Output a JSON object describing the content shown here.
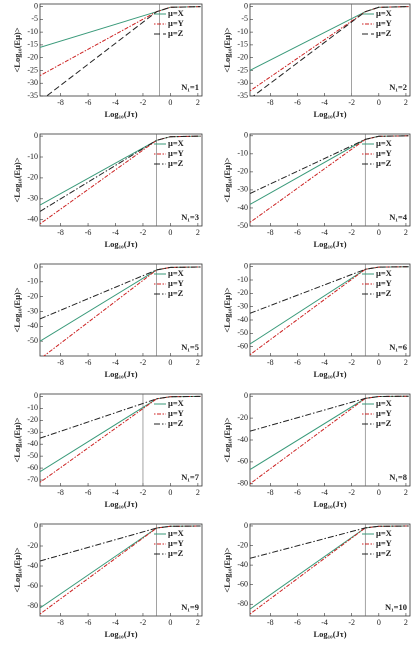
{
  "chart_data": [
    {
      "type": "line",
      "ylabel": "<Log₁₀(Eμ)>",
      "xlabel": "Log₁₀(Jτ)",
      "annotation": "N₁=1",
      "x": [
        -9.5,
        -1,
        0,
        2.2
      ],
      "xlim": [
        -9.5,
        2.3
      ],
      "xticks": [
        -8,
        -6,
        -4,
        -2,
        0,
        2
      ],
      "ylim": [
        -35,
        1
      ],
      "yticks": [
        0,
        -5,
        -10,
        -15,
        -20,
        -25,
        -30,
        -35
      ],
      "vline": -0.8,
      "series": [
        {
          "name": "μ=X",
          "color": "#3a9a7a",
          "dash": "solid",
          "values": [
            -16,
            -2,
            -0.3,
            0
          ]
        },
        {
          "name": "μ=Y",
          "color": "#cc2222",
          "dash": "dotdash",
          "values": [
            -27,
            -2,
            -0.3,
            0
          ]
        },
        {
          "name": "μ=Z",
          "color": "#222222",
          "dash": "dashed",
          "values": [
            -37,
            -2,
            -0.3,
            0
          ]
        }
      ]
    },
    {
      "type": "line",
      "ylabel": "<Log₁₀(Eμ)>",
      "xlabel": "Log₁₀(Jτ)",
      "annotation": "N₁=2",
      "x": [
        -9.5,
        -1,
        0,
        2.2
      ],
      "xlim": [
        -9.5,
        2.3
      ],
      "xticks": [
        -8,
        -6,
        -4,
        -2,
        0,
        2
      ],
      "ylim": [
        -35,
        1
      ],
      "yticks": [
        0,
        -5,
        -10,
        -15,
        -20,
        -25,
        -30,
        -35
      ],
      "vline": -2,
      "series": [
        {
          "name": "μ=X",
          "color": "#3a9a7a",
          "dash": "solid",
          "values": [
            -25,
            -2,
            -0.3,
            0
          ]
        },
        {
          "name": "μ=Y",
          "color": "#cc2222",
          "dash": "dotdash",
          "values": [
            -33,
            -2,
            -0.3,
            0
          ]
        },
        {
          "name": "μ=Z",
          "color": "#222222",
          "dash": "dashed",
          "values": [
            -36,
            -2,
            -0.3,
            0
          ]
        }
      ]
    },
    {
      "type": "line",
      "ylabel": "<Log₁₀(Eμ)>",
      "xlabel": "Log₁₀(Jτ)",
      "annotation": "N₁=3",
      "x": [
        -9.5,
        -1,
        0,
        2.2
      ],
      "xlim": [
        -9.5,
        2.3
      ],
      "xticks": [
        -8,
        -6,
        -4,
        -2,
        0,
        2
      ],
      "ylim": [
        -43,
        1
      ],
      "yticks": [
        0,
        -10,
        -20,
        -30,
        -40
      ],
      "vline": -1,
      "series": [
        {
          "name": "μ=X",
          "color": "#3a9a7a",
          "dash": "solid",
          "values": [
            -33,
            -2,
            -0.3,
            0
          ]
        },
        {
          "name": "μ=Y",
          "color": "#cc2222",
          "dash": "dotdash",
          "values": [
            -42,
            -2,
            -0.3,
            0
          ]
        },
        {
          "name": "μ=Z",
          "color": "#222222",
          "dash": "dashdot",
          "values": [
            -36,
            -2,
            -0.3,
            0
          ]
        }
      ]
    },
    {
      "type": "line",
      "ylabel": "<Log₁₀(Eμ)>",
      "xlabel": "Log₁₀(Jτ)",
      "annotation": "N₁=4",
      "x": [
        -9.5,
        -1,
        0,
        2.2
      ],
      "xlim": [
        -9.5,
        2.3
      ],
      "xticks": [
        -8,
        -6,
        -4,
        -2,
        0,
        2
      ],
      "ylim": [
        -50,
        1
      ],
      "yticks": [
        0,
        -10,
        -20,
        -30,
        -40,
        -50
      ],
      "vline": -1,
      "series": [
        {
          "name": "μ=X",
          "color": "#3a9a7a",
          "dash": "solid",
          "values": [
            -38,
            -2,
            -0.3,
            0
          ]
        },
        {
          "name": "μ=Y",
          "color": "#cc2222",
          "dash": "dotdash",
          "values": [
            -48,
            -2,
            -0.3,
            0
          ]
        },
        {
          "name": "μ=Z",
          "color": "#222222",
          "dash": "dashdot",
          "values": [
            -32,
            -2,
            -0.3,
            0
          ]
        }
      ]
    },
    {
      "type": "line",
      "ylabel": "<Log₁₀(Eμ)>",
      "xlabel": "Log₁₀(Jτ)",
      "annotation": "N₁=5",
      "x": [
        -9.5,
        -1,
        0,
        2.2
      ],
      "xlim": [
        -9.5,
        2.3
      ],
      "xticks": [
        -8,
        -6,
        -4,
        -2,
        0,
        2
      ],
      "ylim": [
        -60,
        2
      ],
      "yticks": [
        0,
        -10,
        -20,
        -30,
        -40,
        -50
      ],
      "vline": -1,
      "series": [
        {
          "name": "μ=X",
          "color": "#3a9a7a",
          "dash": "solid",
          "values": [
            -50,
            -2,
            -0.3,
            0
          ]
        },
        {
          "name": "μ=Y",
          "color": "#cc2222",
          "dash": "dotdash",
          "values": [
            -62,
            -2,
            -0.3,
            0
          ]
        },
        {
          "name": "μ=Z",
          "color": "#222222",
          "dash": "dashdot",
          "values": [
            -35,
            -2,
            -0.3,
            0
          ]
        }
      ]
    },
    {
      "type": "line",
      "ylabel": "<Log₁₀(Eμ)>",
      "xlabel": "Log₁₀(Jτ)",
      "annotation": "N₁=6",
      "x": [
        -9.5,
        -1,
        0,
        2.2
      ],
      "xlim": [
        -9.5,
        2.3
      ],
      "xticks": [
        -8,
        -6,
        -4,
        -2,
        0,
        2
      ],
      "ylim": [
        -67,
        2
      ],
      "yticks": [
        0,
        -10,
        -20,
        -30,
        -40,
        -50,
        -60
      ],
      "vline": -1,
      "series": [
        {
          "name": "μ=X",
          "color": "#3a9a7a",
          "dash": "solid",
          "values": [
            -58,
            -2,
            -0.3,
            0
          ]
        },
        {
          "name": "μ=Y",
          "color": "#cc2222",
          "dash": "dotdash",
          "values": [
            -66,
            -2,
            -0.3,
            0
          ]
        },
        {
          "name": "μ=Z",
          "color": "#222222",
          "dash": "dashdot",
          "values": [
            -35,
            -2,
            -0.3,
            0
          ]
        }
      ]
    },
    {
      "type": "line",
      "ylabel": "<Log₁₀(Eμ)>",
      "xlabel": "Log₁₀(Jτ)",
      "annotation": "N₁=7",
      "x": [
        -9.5,
        -1,
        0,
        2.2
      ],
      "xlim": [
        -9.5,
        2.3
      ],
      "xticks": [
        -8,
        -6,
        -4,
        -2,
        0,
        2
      ],
      "ylim": [
        -75,
        2
      ],
      "yticks": [
        0,
        -10,
        -20,
        -30,
        -40,
        -50,
        -60,
        -70
      ],
      "vline": -2,
      "series": [
        {
          "name": "μ=X",
          "color": "#3a9a7a",
          "dash": "solid",
          "values": [
            -63,
            -2,
            -0.3,
            0
          ]
        },
        {
          "name": "μ=Y",
          "color": "#cc2222",
          "dash": "dotdash",
          "values": [
            -72,
            -2,
            -0.3,
            0
          ]
        },
        {
          "name": "μ=Z",
          "color": "#222222",
          "dash": "dashdot",
          "values": [
            -35,
            -2,
            -0.3,
            0
          ]
        }
      ]
    },
    {
      "type": "line",
      "ylabel": "<Log₁₀(Eμ)>",
      "xlabel": "Log₁₀(Jτ)",
      "annotation": "N₁=8",
      "x": [
        -9.5,
        -1,
        0,
        2.2
      ],
      "xlim": [
        -9.5,
        2.3
      ],
      "xticks": [
        -8,
        -6,
        -4,
        -2,
        0,
        2
      ],
      "ylim": [
        -82,
        2
      ],
      "yticks": [
        0,
        -20,
        -40,
        -60,
        -80
      ],
      "vline": -1,
      "series": [
        {
          "name": "μ=X",
          "color": "#3a9a7a",
          "dash": "solid",
          "values": [
            -67,
            -2,
            -0.3,
            0
          ]
        },
        {
          "name": "μ=Y",
          "color": "#cc2222",
          "dash": "dotdash",
          "values": [
            -80,
            -2,
            -0.3,
            0
          ]
        },
        {
          "name": "μ=Z",
          "color": "#222222",
          "dash": "dashdot",
          "values": [
            -32,
            -2,
            -0.3,
            0
          ]
        }
      ]
    },
    {
      "type": "line",
      "ylabel": "<Log₁₀(Eμ)>",
      "xlabel": "Log₁₀(Jτ)",
      "annotation": "N₁=9",
      "x": [
        -9.5,
        -1,
        0,
        2.2
      ],
      "xlim": [
        -9.5,
        2.3
      ],
      "xticks": [
        -8,
        -6,
        -4,
        -2,
        0,
        2
      ],
      "ylim": [
        -90,
        2
      ],
      "yticks": [
        0,
        -20,
        -40,
        -60,
        -80
      ],
      "vline": -1,
      "series": [
        {
          "name": "μ=X",
          "color": "#3a9a7a",
          "dash": "solid",
          "values": [
            -82,
            -2,
            -0.3,
            0
          ]
        },
        {
          "name": "μ=Y",
          "color": "#cc2222",
          "dash": "dotdash",
          "values": [
            -88,
            -2,
            -0.3,
            0
          ]
        },
        {
          "name": "μ=Z",
          "color": "#222222",
          "dash": "dashdot",
          "values": [
            -35,
            -2,
            -0.3,
            0
          ]
        }
      ]
    },
    {
      "type": "line",
      "ylabel": "<Log₁₀(Eμ)>",
      "xlabel": "Log₁₀(Jτ)",
      "annotation": "N₁=10",
      "x": [
        -9.5,
        -1,
        0,
        2.2
      ],
      "xlim": [
        -9.5,
        2.3
      ],
      "xticks": [
        -8,
        -6,
        -4,
        -2,
        0,
        2
      ],
      "ylim": [
        -92,
        2
      ],
      "yticks": [
        0,
        -20,
        -40,
        -60,
        -80
      ],
      "vline": -1,
      "series": [
        {
          "name": "μ=X",
          "color": "#3a9a7a",
          "dash": "solid",
          "values": [
            -85,
            -2,
            -0.3,
            0
          ]
        },
        {
          "name": "μ=Y",
          "color": "#cc2222",
          "dash": "dotdash",
          "values": [
            -90,
            -2,
            -0.3,
            0
          ]
        },
        {
          "name": "μ=Z",
          "color": "#222222",
          "dash": "dashdot",
          "values": [
            -33,
            -2,
            -0.3,
            0
          ]
        }
      ]
    }
  ]
}
